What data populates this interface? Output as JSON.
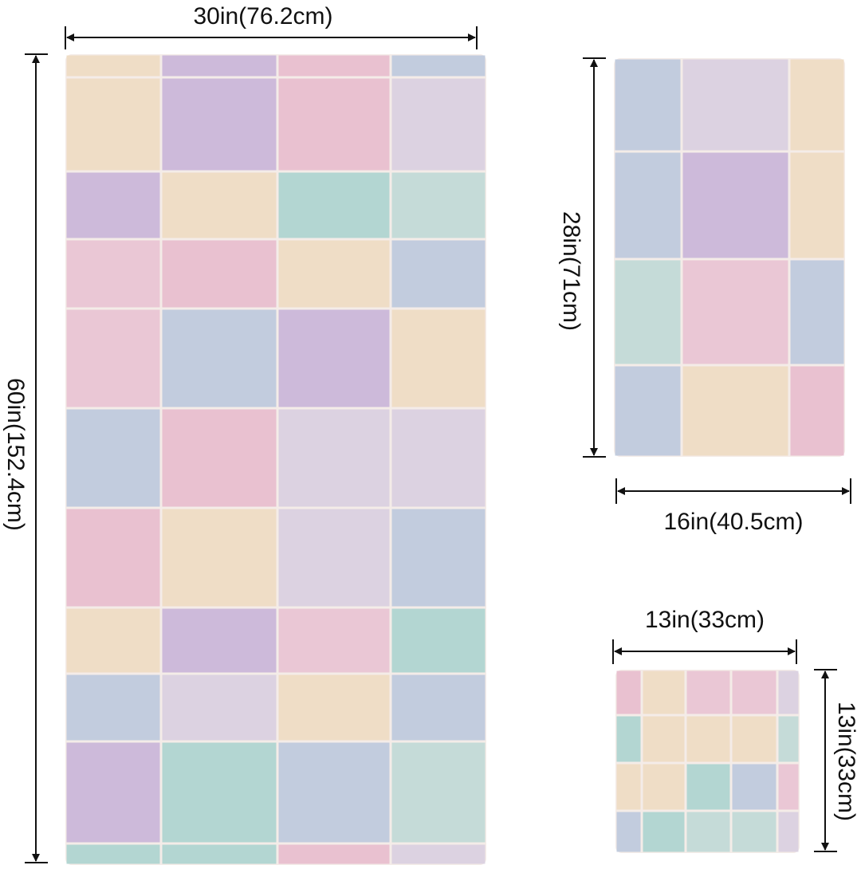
{
  "bath_towel": {
    "width_label": "30in(76.2cm)",
    "height_label": "60in(152.4cm)"
  },
  "hand_towel": {
    "height_label": "28in(71cm)",
    "width_label": "16in(40.5cm)"
  },
  "washcloth": {
    "width_label": "13in(33cm)",
    "height_label": "13in(33cm)"
  }
}
